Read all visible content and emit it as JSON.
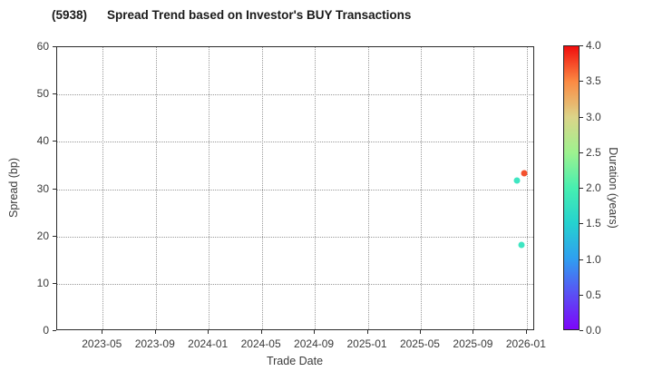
{
  "header": {
    "code": "(5938)",
    "rest": "Spread Trend based on Investor's BUY Transactions"
  },
  "chart_data": {
    "type": "scatter",
    "title": "(5938)  Spread Trend based on Investor's BUY Transactions",
    "xlabel": "Trade Date",
    "ylabel": "Spread (bp)",
    "xlim": [
      "2023-01-18",
      "2026-01-20"
    ],
    "ylim": [
      0,
      60
    ],
    "x_ticks": [
      "2023-05",
      "2023-09",
      "2024-01",
      "2024-05",
      "2024-09",
      "2025-01",
      "2025-05",
      "2025-09",
      "2026-01"
    ],
    "y_ticks": [
      0,
      10,
      20,
      30,
      40,
      50,
      60
    ],
    "grid": "dotted",
    "legend": "none",
    "points": [
      {
        "date": "2025-12-08",
        "spread_bp": 31.8,
        "duration_years": 1.8,
        "color": "#3fe6c2"
      },
      {
        "date": "2025-12-19",
        "spread_bp": 18.2,
        "duration_years": 1.8,
        "color": "#3fe6c2"
      },
      {
        "date": "2025-12-25",
        "spread_bp": 33.3,
        "duration_years": 3.4,
        "color": "#f4512e"
      }
    ],
    "colorbar": {
      "label": "Duration (years)",
      "min": 0.0,
      "max": 4.0,
      "ticks": [
        "4.0",
        "3.5",
        "3.0",
        "2.5",
        "2.0",
        "1.5",
        "1.0",
        "0.5",
        "0.0"
      ],
      "gradient_top_to_bottom": [
        "#f00d0d",
        "#fb8a43",
        "#dcd489",
        "#9ef28f",
        "#47efb0",
        "#25d2cf",
        "#2f9ff0",
        "#5a50f4",
        "#7d05f9"
      ]
    }
  }
}
